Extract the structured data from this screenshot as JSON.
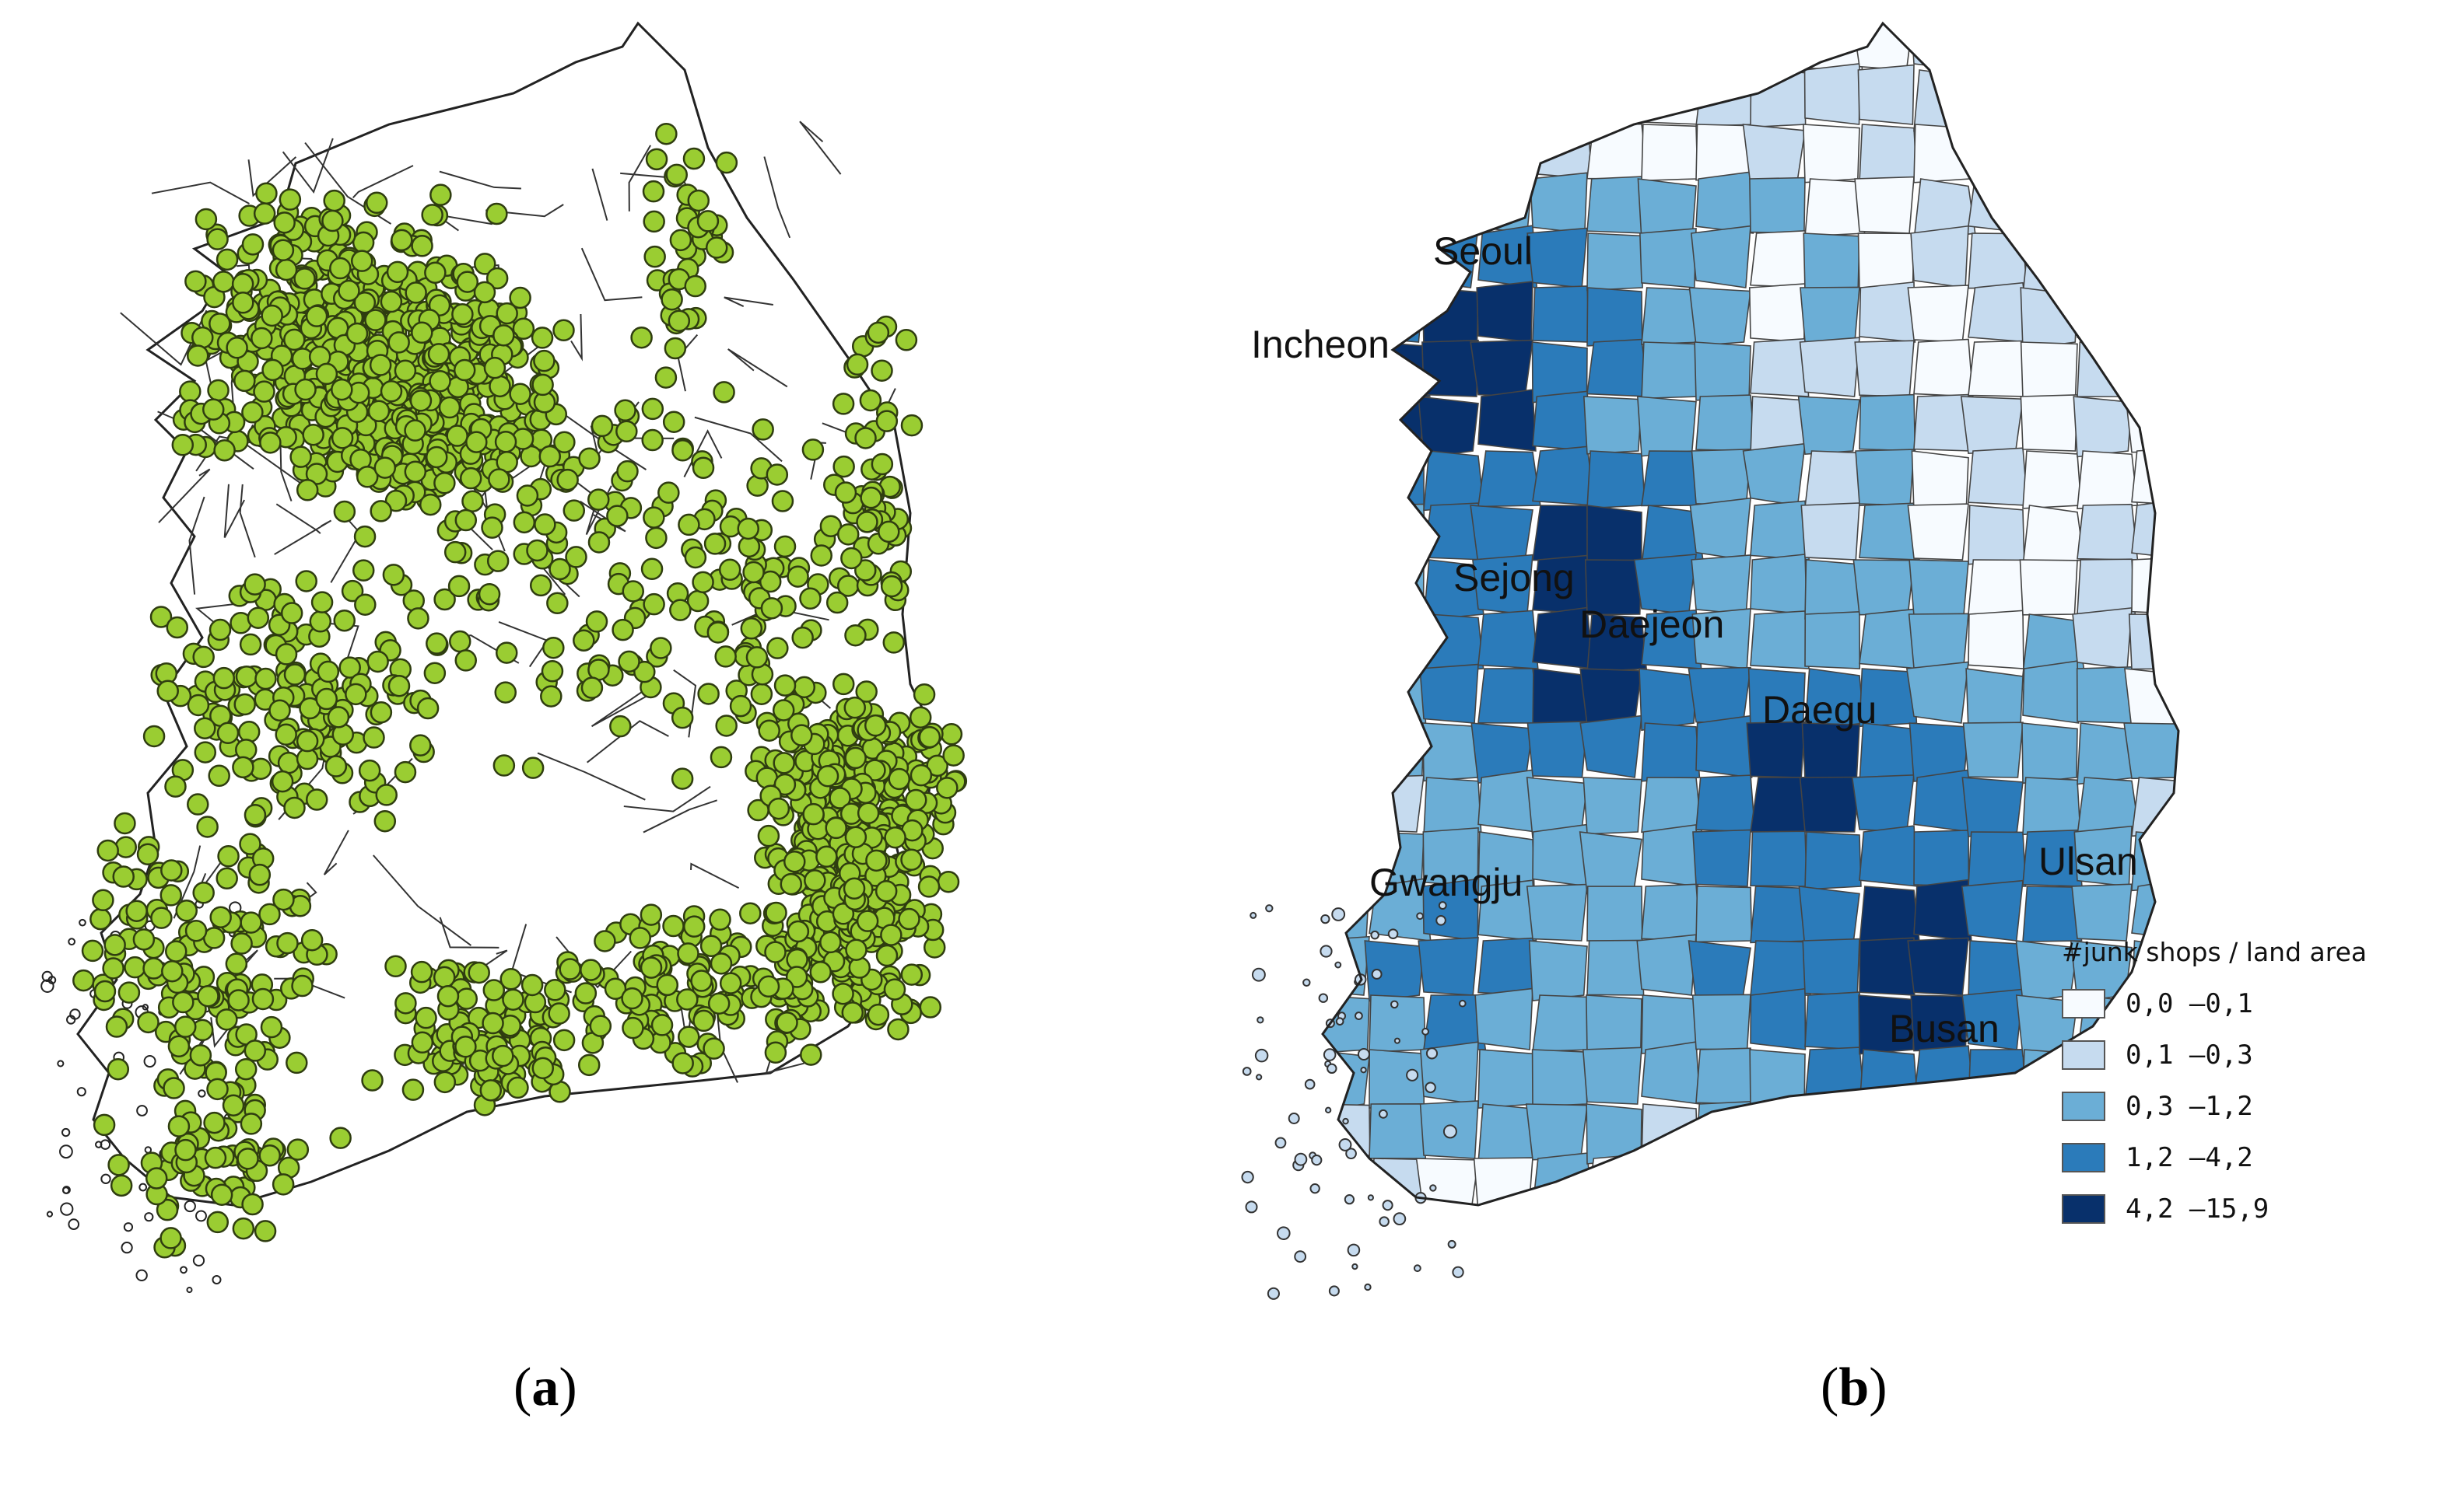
{
  "panel_a": {
    "caption": "a",
    "point_color": "#9acd32"
  },
  "panel_b": {
    "caption": "b",
    "cities": [
      {
        "name": "Seoul",
        "id": "seoul"
      },
      {
        "name": "Incheon",
        "id": "incheon"
      },
      {
        "name": "Sejong",
        "id": "sejong"
      },
      {
        "name": "Daejeon",
        "id": "daejeon"
      },
      {
        "name": "Daegu",
        "id": "daegu"
      },
      {
        "name": "Ulsan",
        "id": "ulsan"
      },
      {
        "name": "Gwangju",
        "id": "gwangju"
      },
      {
        "name": "Busan",
        "id": "busan"
      }
    ],
    "legend": {
      "title": "#junk shops / land area",
      "classes": [
        {
          "label": "0,0 —0,1",
          "color": "#f7fbff"
        },
        {
          "label": "0,1 —0,3",
          "color": "#c6dbef"
        },
        {
          "label": "0,3 —1,2",
          "color": "#6baed6"
        },
        {
          "label": "1,2 —4,2",
          "color": "#2b7bba"
        },
        {
          "label": "4,2 —15,9",
          "color": "#08306b"
        }
      ]
    }
  }
}
